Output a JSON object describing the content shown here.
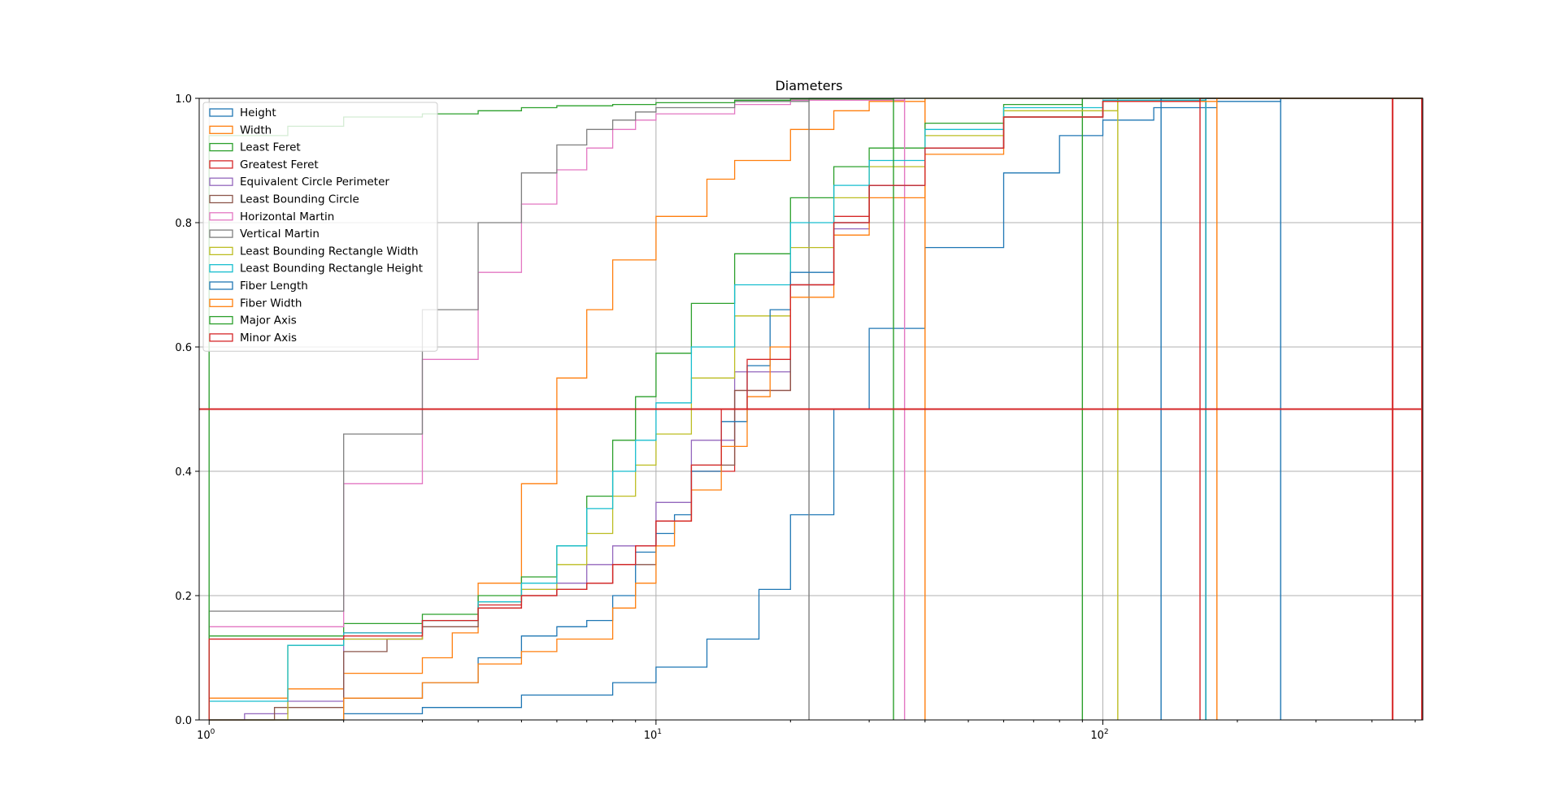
{
  "chart_data": {
    "type": "line",
    "title": "Diameters",
    "xlabel": "",
    "ylabel": "",
    "x_scale": "log",
    "xlim": [
      0.95,
      520
    ],
    "ylim": [
      0,
      1.0
    ],
    "grid": true,
    "legend_position": "upper-left",
    "x_ticks": [
      {
        "value": 1,
        "label": "10",
        "exp": "0"
      },
      {
        "value": 10,
        "label": "10",
        "exp": "1"
      },
      {
        "value": 100,
        "label": "10",
        "exp": "2"
      }
    ],
    "y_ticks": [
      0.0,
      0.2,
      0.4,
      0.6,
      0.8,
      1.0
    ],
    "y_tick_labels": [
      "0.0",
      "0.2",
      "0.4",
      "0.6",
      "0.8",
      "1.0"
    ],
    "reference_line": {
      "y": 0.5,
      "color": "#d62728"
    },
    "series": [
      {
        "name": "Height",
        "color": "#1f77b4",
        "x": [
          1,
          2,
          3,
          5,
          8,
          10,
          13,
          17,
          20,
          25,
          30,
          40,
          60,
          80,
          100,
          130,
          180,
          250
        ],
        "y": [
          0.0,
          0.01,
          0.02,
          0.04,
          0.06,
          0.085,
          0.13,
          0.21,
          0.33,
          0.5,
          0.63,
          0.76,
          0.88,
          0.94,
          0.965,
          0.985,
          0.995,
          1.0
        ],
        "max": 250
      },
      {
        "name": "Width",
        "color": "#ff7f0e",
        "x": [
          1,
          1.5,
          2,
          3,
          3.5,
          4,
          5,
          6,
          7,
          8,
          10,
          13,
          15,
          20,
          25,
          30,
          40
        ],
        "y": [
          0.035,
          0.05,
          0.075,
          0.1,
          0.14,
          0.22,
          0.38,
          0.55,
          0.66,
          0.74,
          0.81,
          0.87,
          0.9,
          0.95,
          0.98,
          0.995,
          1.0
        ],
        "max": 40
      },
      {
        "name": "Least Feret",
        "color": "#2ca02c",
        "x": [
          1,
          2,
          3,
          4,
          5,
          6,
          7,
          8,
          9,
          10,
          12,
          15,
          20,
          25,
          30,
          40,
          60,
          90
        ],
        "y": [
          0.135,
          0.155,
          0.17,
          0.2,
          0.23,
          0.28,
          0.36,
          0.45,
          0.52,
          0.59,
          0.67,
          0.75,
          0.84,
          0.89,
          0.92,
          0.96,
          0.99,
          1.0
        ],
        "max": 90
      },
      {
        "name": "Greatest Feret",
        "color": "#d62728",
        "x": [
          1,
          2,
          3,
          4,
          5,
          6,
          7,
          8,
          9,
          10,
          12,
          15,
          20,
          25,
          30,
          40,
          60,
          100,
          170
        ],
        "y": [
          0.13,
          0.14,
          0.16,
          0.185,
          0.2,
          0.21,
          0.22,
          0.25,
          0.28,
          0.32,
          0.4,
          0.53,
          0.7,
          0.81,
          0.86,
          0.92,
          0.97,
          0.995,
          1.0
        ],
        "max": 170
      },
      {
        "name": "Equivalent Circle Perimeter",
        "color": "#9467bd",
        "x": [
          1,
          1.2,
          1.5,
          2,
          3,
          4,
          5,
          6,
          7,
          8,
          10,
          12,
          15,
          20,
          25,
          30,
          40,
          60,
          100,
          170
        ],
        "y": [
          0.0,
          0.01,
          0.03,
          0.13,
          0.16,
          0.19,
          0.21,
          0.22,
          0.25,
          0.28,
          0.35,
          0.45,
          0.56,
          0.7,
          0.79,
          0.86,
          0.92,
          0.97,
          0.995,
          1.0
        ],
        "max": 170
      },
      {
        "name": "Least Bounding Circle",
        "color": "#8c564b",
        "x": [
          1,
          1.4,
          2,
          2.5,
          3,
          4,
          5,
          6,
          7,
          8,
          10,
          12,
          15,
          20,
          25,
          30,
          40,
          60,
          100,
          170
        ],
        "y": [
          0.0,
          0.02,
          0.11,
          0.13,
          0.15,
          0.18,
          0.2,
          0.21,
          0.22,
          0.25,
          0.32,
          0.41,
          0.53,
          0.7,
          0.8,
          0.86,
          0.92,
          0.97,
          0.995,
          1.0
        ],
        "max": 170
      },
      {
        "name": "Horizontal Martin",
        "color": "#e377c2",
        "x": [
          1,
          2,
          3,
          4,
          5,
          6,
          7,
          8,
          9,
          10,
          15,
          20,
          36
        ],
        "y": [
          0.15,
          0.38,
          0.58,
          0.72,
          0.83,
          0.885,
          0.92,
          0.95,
          0.965,
          0.975,
          0.99,
          0.997,
          1.0
        ],
        "max": 36
      },
      {
        "name": "Vertical Martin",
        "color": "#7f7f7f",
        "x": [
          1,
          2,
          3,
          4,
          5,
          6,
          7,
          8,
          9,
          10,
          15,
          22
        ],
        "y": [
          0.175,
          0.46,
          0.66,
          0.8,
          0.88,
          0.925,
          0.95,
          0.965,
          0.978,
          0.985,
          0.995,
          1.0
        ],
        "max": 22
      },
      {
        "name": "Least Bounding Rectangle Width",
        "color": "#bcbd22",
        "x": [
          1,
          1.5,
          2,
          3,
          4,
          5,
          6,
          7,
          8,
          9,
          10,
          12,
          15,
          20,
          25,
          30,
          40,
          60,
          108
        ],
        "y": [
          0.0,
          0.12,
          0.13,
          0.16,
          0.19,
          0.21,
          0.25,
          0.3,
          0.36,
          0.41,
          0.46,
          0.55,
          0.65,
          0.76,
          0.84,
          0.89,
          0.94,
          0.98,
          1.0
        ],
        "max": 108
      },
      {
        "name": "Least Bounding Rectangle Height",
        "color": "#17becf",
        "x": [
          1,
          1.5,
          2,
          3,
          4,
          5,
          6,
          7,
          8,
          9,
          10,
          12,
          15,
          20,
          25,
          30,
          40,
          60,
          100,
          170
        ],
        "y": [
          0.03,
          0.12,
          0.14,
          0.16,
          0.19,
          0.22,
          0.28,
          0.34,
          0.4,
          0.45,
          0.51,
          0.6,
          0.7,
          0.8,
          0.86,
          0.9,
          0.95,
          0.985,
          0.997,
          1.0
        ],
        "max": 170
      },
      {
        "name": "Fiber Length",
        "color": "#1f77b4",
        "x": [
          1,
          2,
          3,
          4,
          5,
          6,
          7,
          8,
          9,
          10,
          11,
          12,
          14,
          16,
          18,
          20,
          25,
          30,
          40,
          60,
          100,
          135
        ],
        "y": [
          0.0,
          0.035,
          0.06,
          0.1,
          0.135,
          0.15,
          0.16,
          0.2,
          0.27,
          0.3,
          0.33,
          0.4,
          0.48,
          0.57,
          0.66,
          0.72,
          0.8,
          0.86,
          0.92,
          0.97,
          0.995,
          1.0
        ],
        "max": 135
      },
      {
        "name": "Fiber Width",
        "color": "#ff7f0e",
        "x": [
          1,
          2,
          3,
          4,
          5,
          6,
          7,
          8,
          9,
          10,
          11,
          12,
          14,
          16,
          18,
          20,
          25,
          30,
          40,
          60,
          100,
          180
        ],
        "y": [
          0.0,
          0.035,
          0.06,
          0.09,
          0.11,
          0.13,
          0.13,
          0.18,
          0.22,
          0.28,
          0.32,
          0.37,
          0.44,
          0.52,
          0.6,
          0.68,
          0.78,
          0.84,
          0.91,
          0.97,
          0.995,
          1.0
        ],
        "max": 180
      },
      {
        "name": "Major Axis",
        "color": "#2ca02c",
        "x": [
          1,
          1.5,
          2,
          3,
          4,
          5,
          6,
          8,
          10,
          15,
          20,
          34
        ],
        "y": [
          0.94,
          0.955,
          0.97,
          0.975,
          0.98,
          0.985,
          0.988,
          0.99,
          0.993,
          0.997,
          0.999,
          1.0
        ],
        "max": 34
      },
      {
        "name": "Minor Axis",
        "color": "#d62728",
        "x": [
          1,
          2,
          3,
          4,
          5,
          6,
          7,
          8,
          9,
          10,
          12,
          14,
          16,
          20,
          25,
          30,
          40,
          60,
          100,
          165
        ],
        "y": [
          0.13,
          0.135,
          0.16,
          0.18,
          0.2,
          0.21,
          0.22,
          0.25,
          0.28,
          0.32,
          0.41,
          0.5,
          0.58,
          0.7,
          0.8,
          0.86,
          0.92,
          0.97,
          0.995,
          1.0
        ],
        "max": 165
      }
    ],
    "extra_vertical_lines": [
      {
        "x": 520,
        "color": "#d62728"
      },
      {
        "x": 445,
        "color": "#d62728"
      }
    ]
  }
}
